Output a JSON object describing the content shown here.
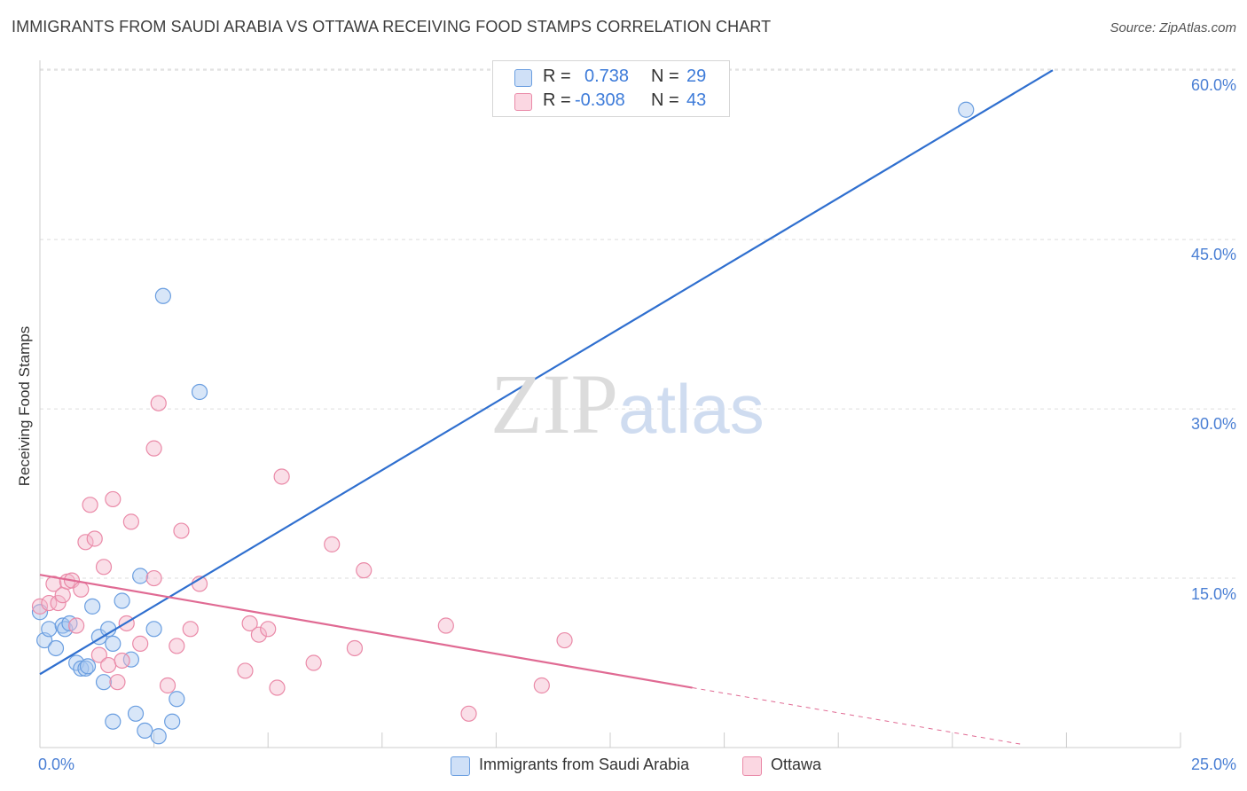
{
  "header": {
    "title": "IMMIGRANTS FROM SAUDI ARABIA VS OTTAWA RECEIVING FOOD STAMPS CORRELATION CHART",
    "source": "Source: ZipAtlas.com"
  },
  "watermark": {
    "zip": "ZIP",
    "atlas": "atlas"
  },
  "legend": {
    "rows": [
      {
        "r_label": "R =",
        "r_value": "0.738",
        "n_label": "N =",
        "n_value": "29",
        "color": "#a8c8f0"
      },
      {
        "r_label": "R =",
        "r_value": "-0.308",
        "n_label": "N =",
        "n_value": "43",
        "color": "#f5b8cb"
      }
    ]
  },
  "bottom_legend": {
    "items": [
      {
        "label": "Immigrants from Saudi Arabia",
        "color": "#a8c8f0"
      },
      {
        "label": "Ottawa",
        "color": "#f5b8cb"
      }
    ]
  },
  "colors": {
    "blue_fill": "#a8c8f0",
    "blue_stroke": "#6a9ee0",
    "blue_line": "#2f6fcf",
    "pink_fill": "#f5b8cb",
    "pink_stroke": "#ea8aa8",
    "pink_line": "#e06a93",
    "grid": "#dddddd",
    "axis_text": "#4a7fd4"
  },
  "chart_data": {
    "type": "scatter",
    "title": "IMMIGRANTS FROM SAUDI ARABIA VS OTTAWA RECEIVING FOOD STAMPS CORRELATION CHART",
    "xlabel": "",
    "ylabel": "Receiving Food Stamps",
    "xlim": [
      0,
      25
    ],
    "ylim": [
      0,
      60
    ],
    "x_tick_labels": [
      "0.0%",
      "25.0%"
    ],
    "y_ticks": [
      15,
      30,
      45,
      60
    ],
    "y_tick_labels": [
      "15.0%",
      "30.0%",
      "45.0%",
      "60.0%"
    ],
    "grid": true,
    "series": [
      {
        "name": "Immigrants from Saudi Arabia",
        "color": "blue",
        "points": [
          [
            0.0,
            12.0
          ],
          [
            0.1,
            9.5
          ],
          [
            0.2,
            10.5
          ],
          [
            0.35,
            8.8
          ],
          [
            0.5,
            10.8
          ],
          [
            0.55,
            10.5
          ],
          [
            0.65,
            11.0
          ],
          [
            0.8,
            7.5
          ],
          [
            0.9,
            7.0
          ],
          [
            1.0,
            7.0
          ],
          [
            1.05,
            7.2
          ],
          [
            1.15,
            12.5
          ],
          [
            1.3,
            9.8
          ],
          [
            1.4,
            5.8
          ],
          [
            1.5,
            10.5
          ],
          [
            1.6,
            9.2
          ],
          [
            1.6,
            2.3
          ],
          [
            1.8,
            13.0
          ],
          [
            2.0,
            7.8
          ],
          [
            2.1,
            3.0
          ],
          [
            2.2,
            15.2
          ],
          [
            2.3,
            1.5
          ],
          [
            2.5,
            10.5
          ],
          [
            2.6,
            1.0
          ],
          [
            2.7,
            40.0
          ],
          [
            2.9,
            2.3
          ],
          [
            3.0,
            4.3
          ],
          [
            3.5,
            31.5
          ],
          [
            20.3,
            56.5
          ]
        ],
        "trend": {
          "x": [
            0,
            22.2
          ],
          "y": [
            6.5,
            60
          ]
        }
      },
      {
        "name": "Ottawa",
        "color": "pink",
        "points": [
          [
            0.0,
            12.5
          ],
          [
            0.2,
            12.8
          ],
          [
            0.3,
            14.5
          ],
          [
            0.4,
            12.8
          ],
          [
            0.5,
            13.5
          ],
          [
            0.6,
            14.7
          ],
          [
            0.7,
            14.8
          ],
          [
            0.8,
            10.8
          ],
          [
            0.9,
            14.0
          ],
          [
            1.0,
            18.2
          ],
          [
            1.1,
            21.5
          ],
          [
            1.2,
            18.5
          ],
          [
            1.3,
            8.2
          ],
          [
            1.4,
            16.0
          ],
          [
            1.5,
            7.3
          ],
          [
            1.6,
            22.0
          ],
          [
            1.7,
            5.8
          ],
          [
            1.8,
            7.7
          ],
          [
            1.9,
            11.0
          ],
          [
            2.0,
            20.0
          ],
          [
            2.2,
            9.2
          ],
          [
            2.5,
            15.0
          ],
          [
            2.5,
            26.5
          ],
          [
            2.6,
            30.5
          ],
          [
            2.8,
            5.5
          ],
          [
            3.0,
            9.0
          ],
          [
            3.1,
            19.2
          ],
          [
            3.3,
            10.5
          ],
          [
            3.5,
            14.5
          ],
          [
            4.5,
            6.8
          ],
          [
            4.6,
            11.0
          ],
          [
            4.8,
            10.0
          ],
          [
            5.0,
            10.5
          ],
          [
            5.2,
            5.3
          ],
          [
            5.3,
            24.0
          ],
          [
            6.0,
            7.5
          ],
          [
            6.4,
            18.0
          ],
          [
            6.9,
            8.8
          ],
          [
            7.1,
            15.7
          ],
          [
            8.9,
            10.8
          ],
          [
            9.4,
            3.0
          ],
          [
            11.0,
            5.5
          ],
          [
            11.5,
            9.5
          ]
        ],
        "trend": {
          "x": [
            0,
            14.3
          ],
          "y": [
            15.3,
            5.3
          ]
        },
        "trend_extension": {
          "x": [
            14.3,
            21.5
          ],
          "y": [
            5.3,
            0.3
          ]
        }
      }
    ]
  }
}
